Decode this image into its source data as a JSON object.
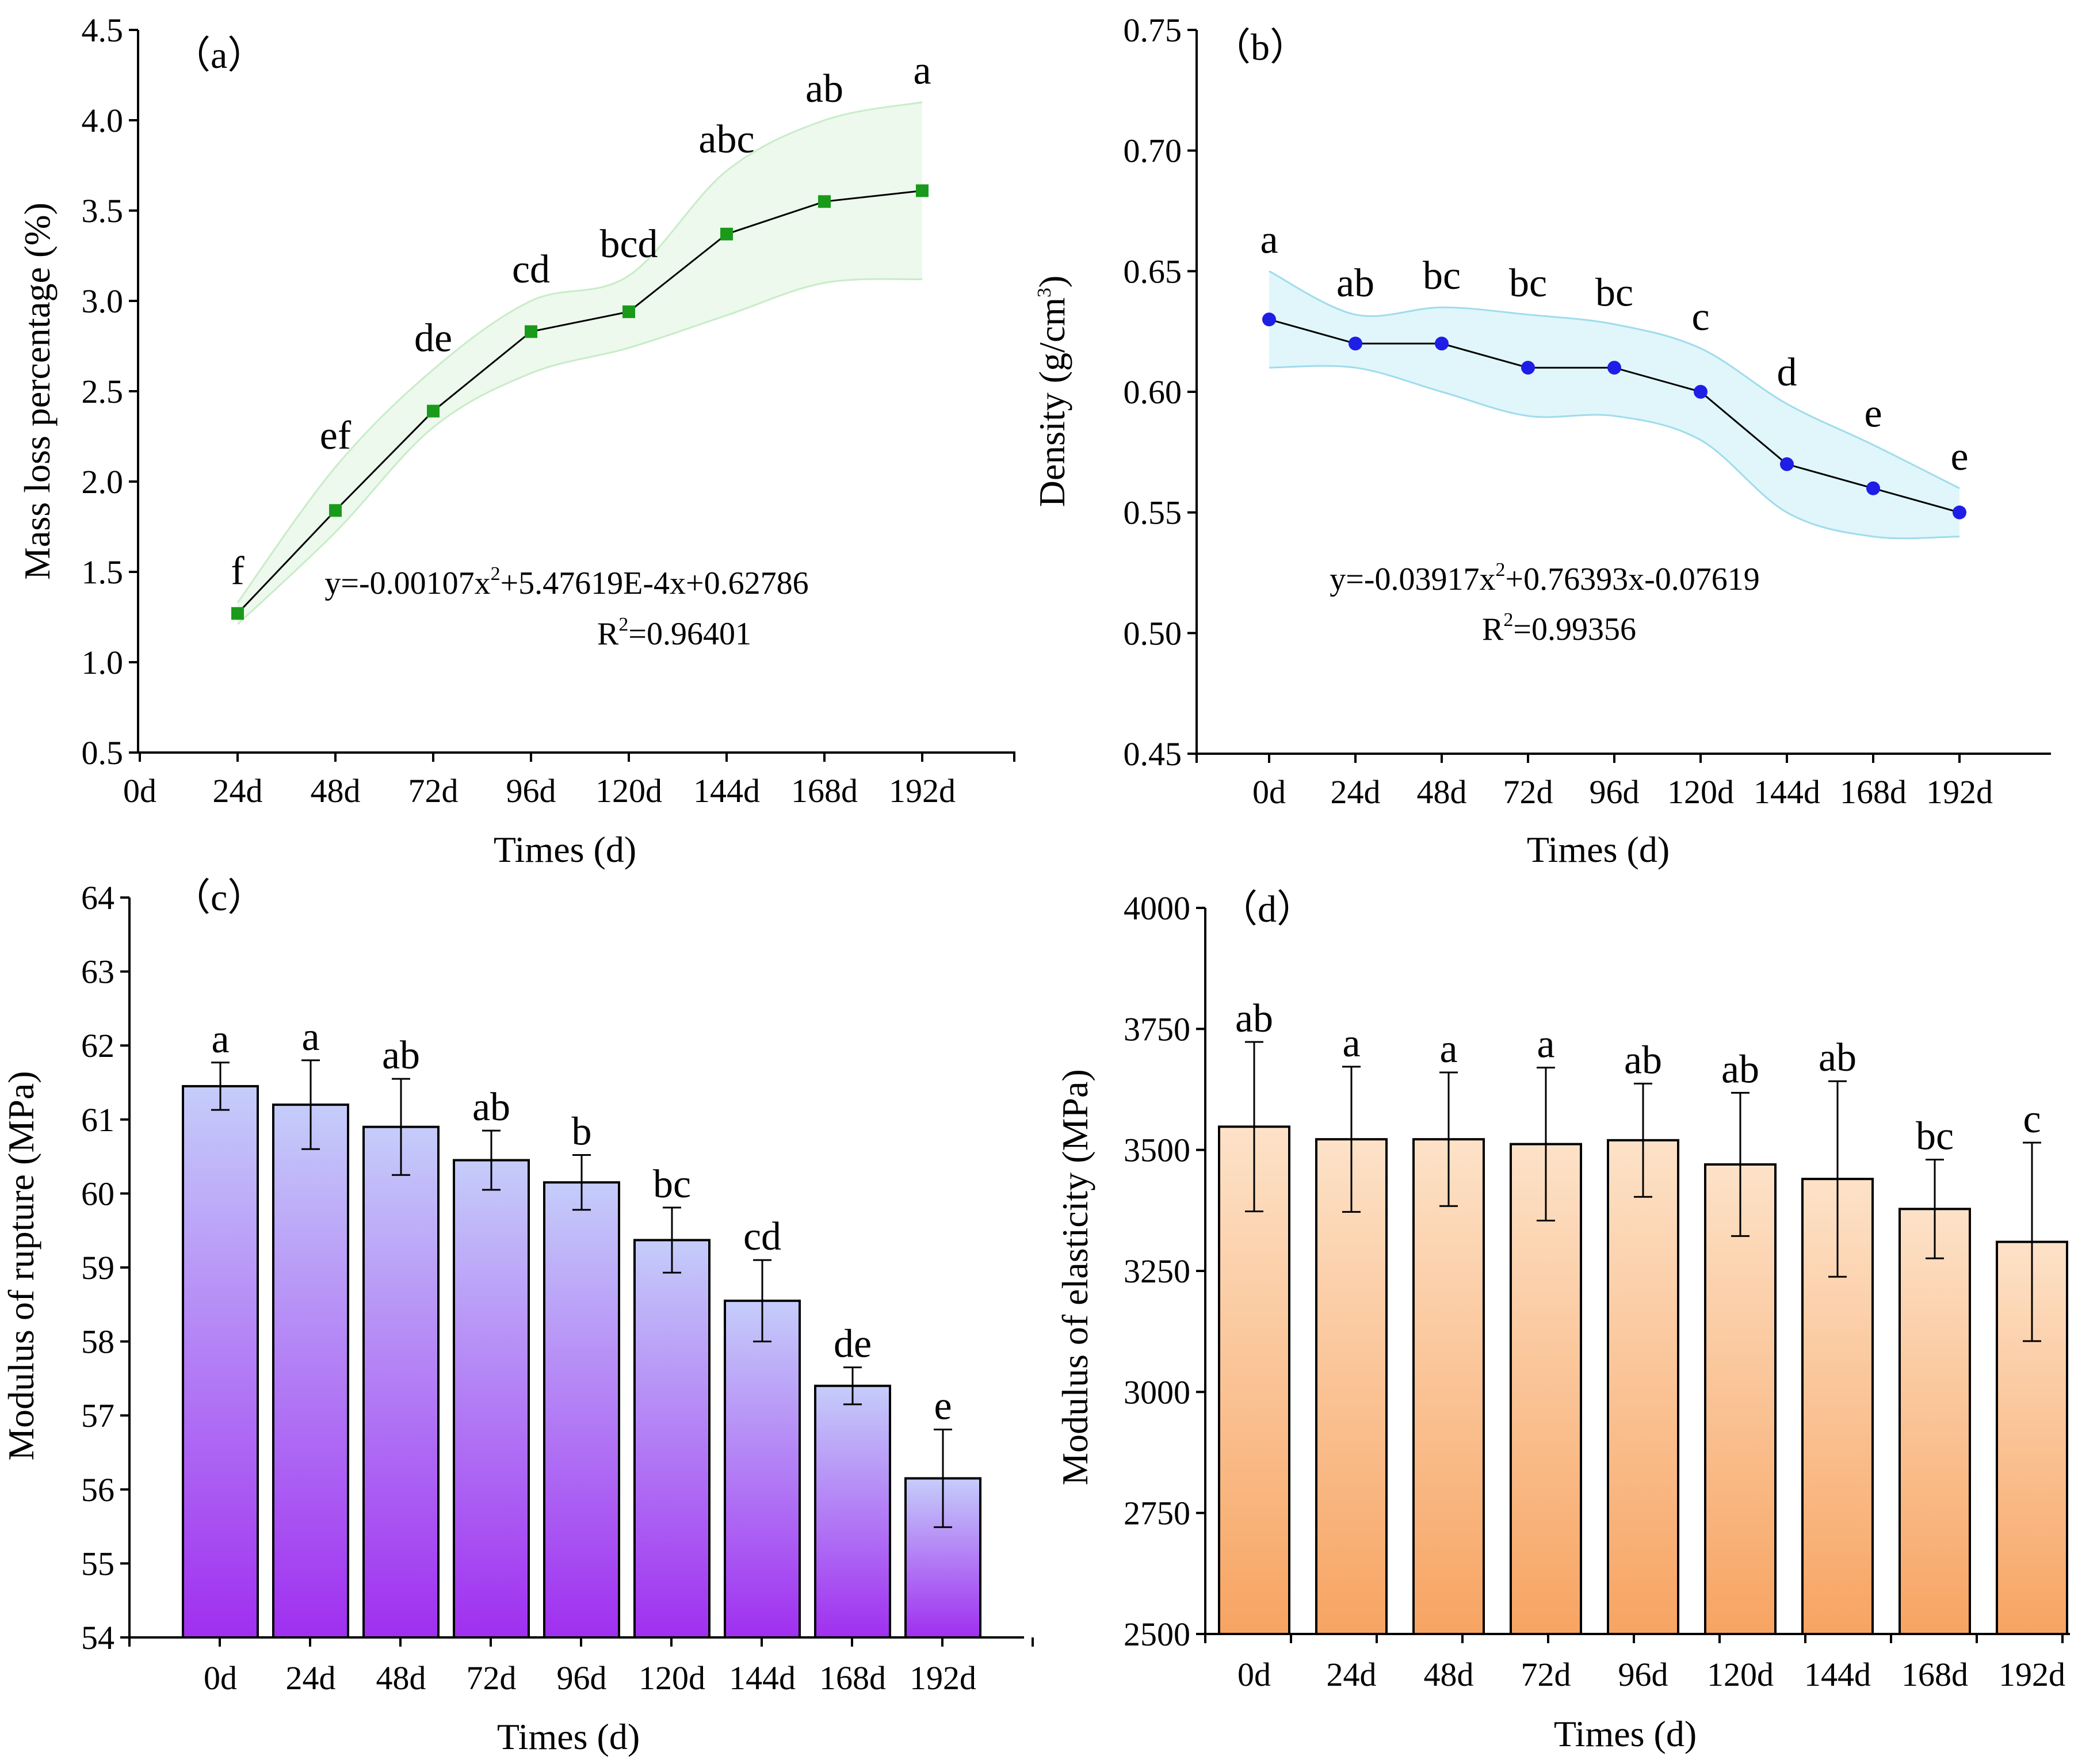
{
  "chart_data": [
    {
      "id": "a",
      "panel_label": "（a）",
      "type": "line",
      "x_ticks": [
        "0d",
        "24d",
        "48d",
        "72d",
        "96d",
        "120d",
        "144d",
        "168d",
        "192d"
      ],
      "points": [
        {
          "x": "24d",
          "y": 1.27,
          "sig": "f",
          "lower": 1.21,
          "upper": 1.33
        },
        {
          "x": "48d",
          "y": 1.84,
          "sig": "ef",
          "lower": 1.72,
          "upper": 2.08
        },
        {
          "x": "72d",
          "y": 2.39,
          "sig": "de",
          "lower": 2.3,
          "upper": 2.62
        },
        {
          "x": "96d",
          "y": 2.83,
          "sig": "cd",
          "lower": 2.6,
          "upper": 3.0
        },
        {
          "x": "120d",
          "y": 2.94,
          "sig": "bcd",
          "lower": 2.74,
          "upper": 3.14
        },
        {
          "x": "144d",
          "y": 3.37,
          "sig": "abc",
          "lower": 2.92,
          "upper": 3.72
        },
        {
          "x": "168d",
          "y": 3.55,
          "sig": "ab",
          "lower": 3.1,
          "upper": 4.0
        },
        {
          "x": "192d",
          "y": 3.61,
          "sig": "a",
          "lower": 3.12,
          "upper": 4.1
        }
      ],
      "ylim": [
        0.5,
        4.5
      ],
      "y_ticks": [
        0.5,
        1.0,
        1.5,
        2.0,
        2.5,
        3.0,
        3.5,
        4.0,
        4.5
      ],
      "y_tick_labels": [
        "0.5",
        "1.0",
        "1.5",
        "2.0",
        "2.5",
        "3.0",
        "3.5",
        "4.0",
        "4.5"
      ],
      "xlabel": "Times (d)",
      "ylabel": "Mass loss percentage (%)",
      "equation_parts": [
        "y=-0.00107x",
        "2",
        "+5.47619E-4x+0.62786"
      ],
      "r2_parts": [
        "R",
        "2",
        "=0.96401"
      ],
      "marker_color": "#1a9a1a",
      "band_color": "#edf9ed",
      "band_edge": "#c8ecc8"
    },
    {
      "id": "b",
      "panel_label": "（b）",
      "type": "line",
      "x_ticks": [
        "0d",
        "24d",
        "48d",
        "72d",
        "96d",
        "120d",
        "144d",
        "168d",
        "192d"
      ],
      "points": [
        {
          "x": "0d",
          "y": 0.63,
          "sig": "a",
          "lower": 0.61,
          "upper": 0.65
        },
        {
          "x": "24d",
          "y": 0.62,
          "sig": "ab",
          "lower": 0.61,
          "upper": 0.632
        },
        {
          "x": "48d",
          "y": 0.62,
          "sig": "bc",
          "lower": 0.6,
          "upper": 0.635
        },
        {
          "x": "72d",
          "y": 0.61,
          "sig": "bc",
          "lower": 0.59,
          "upper": 0.632
        },
        {
          "x": "96d",
          "y": 0.61,
          "sig": "bc",
          "lower": 0.59,
          "upper": 0.628
        },
        {
          "x": "120d",
          "y": 0.6,
          "sig": "c",
          "lower": 0.58,
          "upper": 0.618
        },
        {
          "x": "144d",
          "y": 0.57,
          "sig": "d",
          "lower": 0.55,
          "upper": 0.595
        },
        {
          "x": "168d",
          "y": 0.56,
          "sig": "e",
          "lower": 0.54,
          "upper": 0.578
        },
        {
          "x": "192d",
          "y": 0.55,
          "sig": "e",
          "lower": 0.54,
          "upper": 0.56
        }
      ],
      "ylim": [
        0.45,
        0.75
      ],
      "y_ticks": [
        0.45,
        0.5,
        0.55,
        0.6,
        0.65,
        0.7,
        0.75
      ],
      "y_tick_labels": [
        "0.45",
        "0.50",
        "0.55",
        "0.60",
        "0.65",
        "0.70",
        "0.75"
      ],
      "xlabel": "Times (d)",
      "ylabel_parts": [
        "Density (g/cm",
        "3",
        ")"
      ],
      "equation_parts": [
        "y=-0.03917x",
        "2",
        "+0.76393x-0.07619"
      ],
      "r2_parts": [
        "R",
        "2",
        "=0.99356"
      ],
      "marker_color": "#1e1ee6",
      "band_color": "#e0f6fb",
      "band_edge": "#9fdcec"
    },
    {
      "id": "c",
      "panel_label": "（c）",
      "type": "bar",
      "categories": [
        "0d",
        "24d",
        "48d",
        "72d",
        "96d",
        "120d",
        "144d",
        "168d",
        "192d"
      ],
      "values": [
        61.45,
        61.2,
        60.9,
        60.45,
        60.15,
        59.37,
        58.55,
        57.4,
        56.15
      ],
      "errors": [
        0.32,
        0.6,
        0.65,
        0.4,
        0.37,
        0.44,
        0.55,
        0.25,
        0.66
      ],
      "sig": [
        "a",
        "a",
        "ab",
        "ab",
        "b",
        "bc",
        "cd",
        "de",
        "e"
      ],
      "ylim": [
        54,
        64
      ],
      "y_ticks": [
        54,
        55,
        56,
        57,
        58,
        59,
        60,
        61,
        62,
        63,
        64
      ],
      "y_tick_labels": [
        "54",
        "55",
        "56",
        "57",
        "58",
        "59",
        "60",
        "61",
        "62",
        "63",
        "64"
      ],
      "xlabel": "Times (d)",
      "ylabel": "Modulus of rupture (MPa)",
      "gradient_top": "#c5cdfa",
      "gradient_bottom": "#a02ff0"
    },
    {
      "id": "d",
      "panel_label": "（d）",
      "type": "bar",
      "categories": [
        "0d",
        "24d",
        "48d",
        "72d",
        "96d",
        "120d",
        "144d",
        "168d",
        "192d"
      ],
      "values": [
        3548,
        3522,
        3522,
        3512,
        3520,
        3470,
        3440,
        3378,
        3310
      ],
      "errors": [
        175,
        150,
        138,
        158,
        117,
        148,
        202,
        102,
        205
      ],
      "sig": [
        "ab",
        "a",
        "a",
        "a",
        "ab",
        "ab",
        "ab",
        "bc",
        "c"
      ],
      "ylim": [
        2500,
        4000
      ],
      "y_ticks": [
        2500,
        2750,
        3000,
        3250,
        3500,
        3750,
        4000
      ],
      "y_tick_labels": [
        "2500",
        "2750",
        "3000",
        "3250",
        "3500",
        "3750",
        "4000"
      ],
      "xlabel": "Times (d)",
      "ylabel": "Modulus of elasticity (MPa)",
      "gradient_top": "#fde2c8",
      "gradient_bottom": "#f7a462"
    }
  ]
}
